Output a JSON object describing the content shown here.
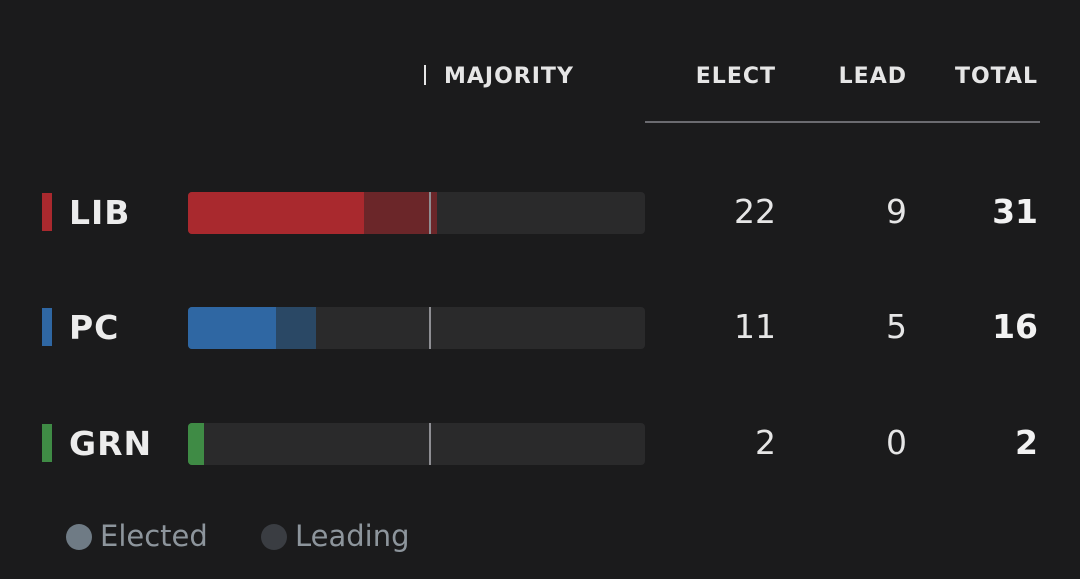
{
  "header": {
    "majority_label": "MAJORITY",
    "elect_label": "ELECT",
    "lead_label": "LEAD",
    "total_label": "TOTAL"
  },
  "scale": {
    "max_seats": 57,
    "majority_seats": 30
  },
  "parties": [
    {
      "name": "LIB",
      "elect": 22,
      "lead": 9,
      "total": 31,
      "color": "#a9292e",
      "lead_color": "#6b2629"
    },
    {
      "name": "PC",
      "elect": 11,
      "lead": 5,
      "total": 16,
      "color": "#2f67a3",
      "lead_color": "#2a4865"
    },
    {
      "name": "GRN",
      "elect": 2,
      "lead": 0,
      "total": 2,
      "color": "#3f8b45",
      "lead_color": "#2f5a33"
    }
  ],
  "legend": {
    "elected_label": "Elected",
    "leading_label": "Leading"
  },
  "colors": {
    "background": "#1b1b1c",
    "track": "#2a2a2b",
    "majority_line": "#8e8e93",
    "legend_elected": "#6f7b85",
    "legend_leading": "#3a3d42"
  }
}
